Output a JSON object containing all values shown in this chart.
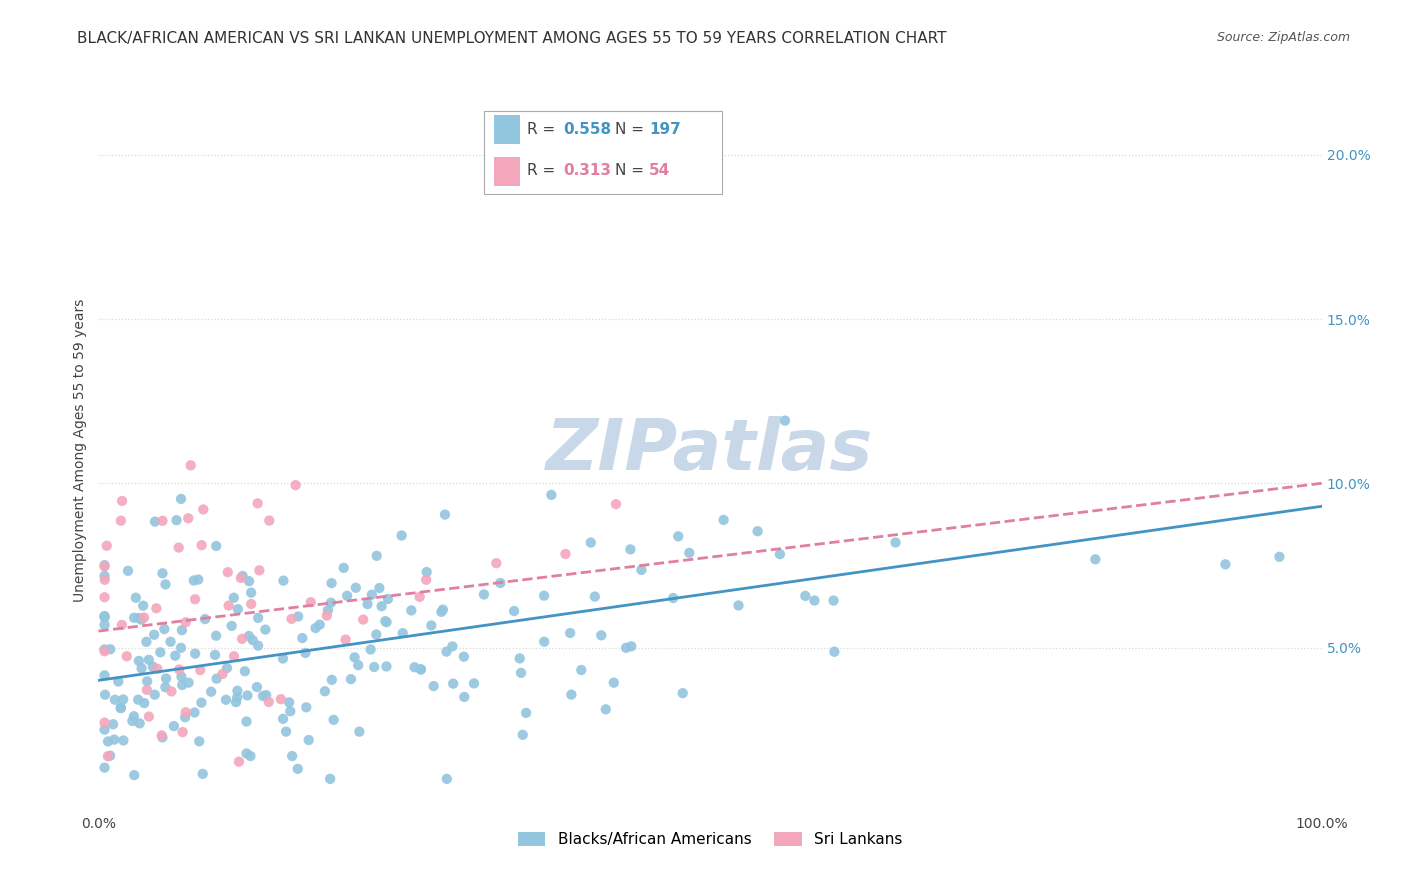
{
  "title": "BLACK/AFRICAN AMERICAN VS SRI LANKAN UNEMPLOYMENT AMONG AGES 55 TO 59 YEARS CORRELATION CHART",
  "source": "Source: ZipAtlas.com",
  "ylabel": "Unemployment Among Ages 55 to 59 years",
  "xlim": [
    0,
    1.0
  ],
  "ylim": [
    0,
    0.22
  ],
  "xticks": [
    0.0,
    1.0
  ],
  "xticklabels": [
    "0.0%",
    "100.0%"
  ],
  "yticks": [
    0.05,
    0.1,
    0.15,
    0.2
  ],
  "yticklabels": [
    "5.0%",
    "10.0%",
    "15.0%",
    "20.0%"
  ],
  "blue_color": "#92c5de",
  "pink_color": "#f4a6bc",
  "blue_line_color": "#4393c3",
  "pink_line_color": "#e07fa0",
  "legend_blue_r": "0.558",
  "legend_blue_n": "197",
  "legend_pink_r": "0.313",
  "legend_pink_n": "54",
  "legend_label_blue": "Blacks/African Americans",
  "legend_label_pink": "Sri Lankans",
  "watermark": "ZIPatlas",
  "background_color": "#ffffff",
  "grid_color": "#d8d8d8",
  "title_fontsize": 11,
  "source_fontsize": 9,
  "axis_label_fontsize": 10,
  "tick_fontsize": 10,
  "legend_fontsize": 11,
  "watermark_fontsize": 52,
  "watermark_color": "#c8d8e8",
  "blue_trend_y_start": 0.04,
  "blue_trend_y_end": 0.093,
  "pink_trend_y_start": 0.055,
  "pink_trend_y_end": 0.1
}
